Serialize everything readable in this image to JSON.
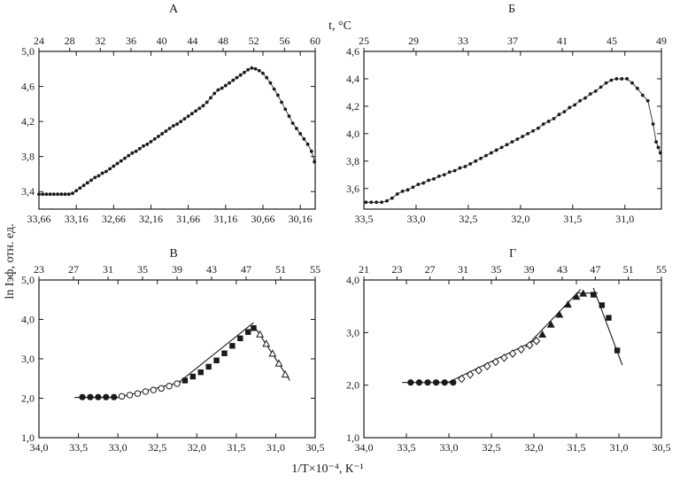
{
  "shared": {
    "top_axis_label": "t, °C",
    "y_axis_label": "ln Iэф, отн. ед.",
    "x_axis_label": "1/T×10⁻⁴, К⁻¹"
  },
  "chart_data": [
    {
      "panel": "А",
      "type": "scatter",
      "title": "А",
      "x_ticks": [
        "33,66",
        "33,16",
        "32,66",
        "32,16",
        "31,66",
        "31,16",
        "30,66",
        "30,16"
      ],
      "x_tick_values": [
        33.66,
        33.16,
        32.66,
        32.16,
        31.66,
        31.16,
        30.66,
        30.16
      ],
      "xlim": [
        33.66,
        29.96
      ],
      "top_ticks": [
        "24",
        "28",
        "32",
        "36",
        "40",
        "44",
        "48",
        "52",
        "56",
        "60"
      ],
      "y_ticks": [
        "3,4",
        "3,8",
        "4,2",
        "4,6",
        "5,0"
      ],
      "y_tick_values": [
        3.4,
        3.8,
        4.2,
        4.6,
        5.0
      ],
      "ylim": [
        3.2,
        5.0
      ],
      "points": [
        [
          33.66,
          3.37
        ],
        [
          33.61,
          3.37
        ],
        [
          33.56,
          3.37
        ],
        [
          33.51,
          3.37
        ],
        [
          33.46,
          3.37
        ],
        [
          33.41,
          3.37
        ],
        [
          33.36,
          3.37
        ],
        [
          33.31,
          3.37
        ],
        [
          33.26,
          3.37
        ],
        [
          33.21,
          3.38
        ],
        [
          33.16,
          3.41
        ],
        [
          33.11,
          3.44
        ],
        [
          33.06,
          3.47
        ],
        [
          33.01,
          3.5
        ],
        [
          32.96,
          3.53
        ],
        [
          32.91,
          3.56
        ],
        [
          32.86,
          3.58
        ],
        [
          32.81,
          3.61
        ],
        [
          32.76,
          3.63
        ],
        [
          32.71,
          3.66
        ],
        [
          32.66,
          3.69
        ],
        [
          32.61,
          3.72
        ],
        [
          32.56,
          3.75
        ],
        [
          32.51,
          3.78
        ],
        [
          32.46,
          3.81
        ],
        [
          32.41,
          3.84
        ],
        [
          32.36,
          3.86
        ],
        [
          32.31,
          3.89
        ],
        [
          32.26,
          3.92
        ],
        [
          32.21,
          3.94
        ],
        [
          32.16,
          3.97
        ],
        [
          32.11,
          4.0
        ],
        [
          32.06,
          4.03
        ],
        [
          32.01,
          4.06
        ],
        [
          31.96,
          4.09
        ],
        [
          31.91,
          4.12
        ],
        [
          31.86,
          4.15
        ],
        [
          31.81,
          4.17
        ],
        [
          31.76,
          4.2
        ],
        [
          31.71,
          4.23
        ],
        [
          31.66,
          4.26
        ],
        [
          31.61,
          4.29
        ],
        [
          31.56,
          4.32
        ],
        [
          31.51,
          4.35
        ],
        [
          31.46,
          4.38
        ],
        [
          31.41,
          4.42
        ],
        [
          31.36,
          4.47
        ],
        [
          31.31,
          4.52
        ],
        [
          31.26,
          4.56
        ],
        [
          31.21,
          4.58
        ],
        [
          31.16,
          4.61
        ],
        [
          31.11,
          4.64
        ],
        [
          31.06,
          4.67
        ],
        [
          31.01,
          4.7
        ],
        [
          30.96,
          4.73
        ],
        [
          30.91,
          4.76
        ],
        [
          30.86,
          4.79
        ],
        [
          30.81,
          4.81
        ],
        [
          30.76,
          4.8
        ],
        [
          30.71,
          4.78
        ],
        [
          30.66,
          4.75
        ],
        [
          30.61,
          4.7
        ],
        [
          30.56,
          4.64
        ],
        [
          30.51,
          4.57
        ],
        [
          30.46,
          4.5
        ],
        [
          30.41,
          4.42
        ],
        [
          30.36,
          4.34
        ],
        [
          30.31,
          4.26
        ],
        [
          30.26,
          4.18
        ],
        [
          30.21,
          4.12
        ],
        [
          30.16,
          4.06
        ],
        [
          30.11,
          4.0
        ],
        [
          30.06,
          3.94
        ],
        [
          30.01,
          3.86
        ],
        [
          29.97,
          3.74
        ]
      ]
    },
    {
      "panel": "Б",
      "type": "scatter",
      "title": "Б",
      "x_ticks": [
        "33,5",
        "33,0",
        "32,5",
        "32,0",
        "31,5",
        "31,0"
      ],
      "x_tick_values": [
        33.5,
        33.0,
        32.5,
        32.0,
        31.5,
        31.0
      ],
      "xlim": [
        33.5,
        30.65
      ],
      "top_ticks": [
        "25",
        "29",
        "33",
        "37",
        "41",
        "45",
        "49"
      ],
      "y_ticks": [
        "3,6",
        "3,8",
        "4,0",
        "4,2",
        "4,4",
        "4,6"
      ],
      "y_tick_values": [
        3.6,
        3.8,
        4.0,
        4.2,
        4.4,
        4.6
      ],
      "ylim": [
        3.45,
        4.6
      ],
      "points": [
        [
          33.48,
          3.5
        ],
        [
          33.43,
          3.5
        ],
        [
          33.38,
          3.5
        ],
        [
          33.33,
          3.5
        ],
        [
          33.28,
          3.51
        ],
        [
          33.23,
          3.53
        ],
        [
          33.18,
          3.56
        ],
        [
          33.13,
          3.58
        ],
        [
          33.08,
          3.59
        ],
        [
          33.03,
          3.61
        ],
        [
          32.98,
          3.63
        ],
        [
          32.93,
          3.64
        ],
        [
          32.88,
          3.66
        ],
        [
          32.83,
          3.67
        ],
        [
          32.78,
          3.69
        ],
        [
          32.73,
          3.7
        ],
        [
          32.68,
          3.72
        ],
        [
          32.63,
          3.73
        ],
        [
          32.58,
          3.75
        ],
        [
          32.53,
          3.76
        ],
        [
          32.48,
          3.78
        ],
        [
          32.43,
          3.8
        ],
        [
          32.38,
          3.82
        ],
        [
          32.33,
          3.84
        ],
        [
          32.28,
          3.86
        ],
        [
          32.23,
          3.88
        ],
        [
          32.18,
          3.9
        ],
        [
          32.13,
          3.92
        ],
        [
          32.08,
          3.94
        ],
        [
          32.03,
          3.96
        ],
        [
          31.98,
          3.98
        ],
        [
          31.93,
          4.0
        ],
        [
          31.88,
          4.02
        ],
        [
          31.83,
          4.04
        ],
        [
          31.78,
          4.07
        ],
        [
          31.73,
          4.09
        ],
        [
          31.68,
          4.11
        ],
        [
          31.63,
          4.14
        ],
        [
          31.58,
          4.16
        ],
        [
          31.53,
          4.19
        ],
        [
          31.48,
          4.21
        ],
        [
          31.43,
          4.24
        ],
        [
          31.38,
          4.26
        ],
        [
          31.33,
          4.29
        ],
        [
          31.28,
          4.31
        ],
        [
          31.23,
          4.34
        ],
        [
          31.18,
          4.37
        ],
        [
          31.13,
          4.39
        ],
        [
          31.08,
          4.4
        ],
        [
          31.03,
          4.4
        ],
        [
          30.98,
          4.4
        ],
        [
          30.93,
          4.37
        ],
        [
          30.88,
          4.33
        ],
        [
          30.83,
          4.28
        ],
        [
          30.78,
          4.24
        ],
        [
          30.73,
          4.07
        ],
        [
          30.7,
          3.94
        ],
        [
          30.68,
          3.9
        ],
        [
          30.66,
          3.86
        ]
      ]
    },
    {
      "panel": "В",
      "type": "scatter",
      "title": "В",
      "x_ticks": [
        "34,0",
        "33,5",
        "33,0",
        "32,5",
        "32,0",
        "31,5",
        "31,0",
        "30,5"
      ],
      "x_tick_values": [
        34.0,
        33.5,
        33.0,
        32.5,
        32.0,
        31.5,
        31.0,
        30.5
      ],
      "xlim": [
        34.0,
        30.5
      ],
      "top_ticks": [
        "23",
        "27",
        "31",
        "35",
        "39",
        "43",
        "47",
        "51",
        "55"
      ],
      "y_ticks": [
        "1,0",
        "2,0",
        "3,0",
        "4,0",
        "5,0"
      ],
      "y_tick_values": [
        1.0,
        2.0,
        3.0,
        4.0,
        5.0
      ],
      "ylim": [
        1.0,
        5.0
      ],
      "series": [
        {
          "marker": "filled-circle",
          "points": [
            [
              33.45,
              2.03
            ],
            [
              33.35,
              2.03
            ],
            [
              33.25,
              2.03
            ],
            [
              33.15,
              2.03
            ],
            [
              33.05,
              2.03
            ]
          ]
        },
        {
          "marker": "open-circle",
          "points": [
            [
              32.95,
              2.05
            ],
            [
              32.85,
              2.08
            ],
            [
              32.75,
              2.12
            ],
            [
              32.65,
              2.17
            ],
            [
              32.55,
              2.21
            ],
            [
              32.45,
              2.25
            ],
            [
              32.35,
              2.31
            ],
            [
              32.25,
              2.37
            ]
          ]
        },
        {
          "marker": "filled-square",
          "points": [
            [
              32.15,
              2.45
            ],
            [
              32.05,
              2.55
            ],
            [
              31.95,
              2.66
            ],
            [
              31.85,
              2.8
            ],
            [
              31.75,
              2.96
            ],
            [
              31.65,
              3.14
            ],
            [
              31.55,
              3.33
            ],
            [
              31.45,
              3.52
            ],
            [
              31.35,
              3.68
            ],
            [
              31.28,
              3.78
            ]
          ]
        },
        {
          "marker": "open-triangle",
          "points": [
            [
              31.2,
              3.62
            ],
            [
              31.12,
              3.38
            ],
            [
              31.04,
              3.13
            ],
            [
              30.96,
              2.88
            ],
            [
              30.88,
              2.6
            ]
          ]
        }
      ],
      "fit_lines": [
        [
          [
            33.55,
            2.02
          ],
          [
            32.95,
            2.02
          ]
        ],
        [
          [
            33.0,
            2.02
          ],
          [
            32.2,
            2.41
          ]
        ],
        [
          [
            32.25,
            2.37
          ],
          [
            31.28,
            3.92
          ]
        ],
        [
          [
            31.28,
            3.85
          ],
          [
            30.82,
            2.45
          ]
        ]
      ]
    },
    {
      "panel": "Г",
      "type": "scatter",
      "title": "Г",
      "x_ticks": [
        "34,0",
        "33,5",
        "33,0",
        "32,5",
        "32,0",
        "31,5",
        "31,0",
        "30,5"
      ],
      "x_tick_values": [
        34.0,
        33.5,
        33.0,
        32.5,
        32.0,
        31.5,
        31.0,
        30.5
      ],
      "xlim": [
        34.0,
        30.5
      ],
      "top_ticks": [
        "21",
        "23",
        "27",
        "31",
        "35",
        "39",
        "43",
        "47",
        "51",
        "55"
      ],
      "y_ticks": [
        "1,0",
        "2,0",
        "3,0",
        "4,0"
      ],
      "y_tick_values": [
        1.0,
        2.0,
        3.0,
        4.0
      ],
      "ylim": [
        1.0,
        4.0
      ],
      "series": [
        {
          "marker": "filled-circle",
          "points": [
            [
              33.45,
              2.05
            ],
            [
              33.35,
              2.05
            ],
            [
              33.25,
              2.05
            ],
            [
              33.15,
              2.05
            ],
            [
              33.05,
              2.05
            ],
            [
              32.95,
              2.05
            ]
          ]
        },
        {
          "marker": "open-diamond",
          "points": [
            [
              32.85,
              2.12
            ],
            [
              32.75,
              2.2
            ],
            [
              32.65,
              2.28
            ],
            [
              32.55,
              2.36
            ],
            [
              32.45,
              2.44
            ],
            [
              32.35,
              2.52
            ],
            [
              32.25,
              2.6
            ],
            [
              32.15,
              2.68
            ],
            [
              32.05,
              2.76
            ],
            [
              31.97,
              2.84
            ]
          ]
        },
        {
          "marker": "filled-triangle",
          "points": [
            [
              31.9,
              2.96
            ],
            [
              31.8,
              3.15
            ],
            [
              31.7,
              3.34
            ],
            [
              31.6,
              3.53
            ],
            [
              31.5,
              3.68
            ],
            [
              31.42,
              3.74
            ]
          ]
        },
        {
          "marker": "filled-square",
          "points": [
            [
              31.3,
              3.72
            ],
            [
              31.2,
              3.52
            ],
            [
              31.12,
              3.28
            ],
            [
              31.02,
              2.66
            ]
          ]
        }
      ],
      "fit_lines": [
        [
          [
            33.55,
            2.05
          ],
          [
            32.95,
            2.05
          ]
        ],
        [
          [
            33.05,
            2.02
          ],
          [
            31.95,
            2.88
          ]
        ],
        [
          [
            32.1,
            2.72
          ],
          [
            31.45,
            3.82
          ]
        ],
        [
          [
            31.5,
            3.75
          ],
          [
            31.25,
            3.75
          ]
        ],
        [
          [
            31.3,
            3.85
          ],
          [
            30.96,
            2.38
          ]
        ]
      ]
    }
  ]
}
